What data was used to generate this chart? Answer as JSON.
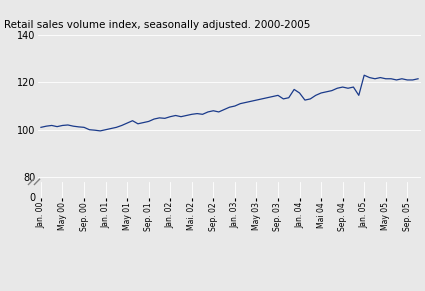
{
  "title": "Retail sales volume index, seasonally adjusted. 2000-2005",
  "line_color": "#1a3a8a",
  "background_color": "#e8e8e8",
  "plot_bg_color": "#e8e8e8",
  "ylim_main": [
    78,
    140
  ],
  "ylim_zero": [
    0,
    5
  ],
  "yticks": [
    80,
    100,
    120,
    140
  ],
  "ytick_labels": [
    "80",
    "100",
    "120",
    "140"
  ],
  "xtick_labels": [
    "Jan. 00",
    "May 00",
    "Sep. 00",
    "Jan. 01",
    "May 01",
    "Sep. 01",
    "Jan. 02",
    "Mai. 02",
    "Sep. 02",
    "Jan. 03",
    "May 03",
    "Sep. 03",
    "Jan. 04",
    "Mai 04",
    "Sep. 04",
    "Jan. 05",
    "May 05",
    "Sep. 05"
  ],
  "values": [
    101.0,
    101.5,
    101.8,
    101.3,
    101.8,
    102.0,
    101.5,
    101.2,
    101.0,
    100.0,
    99.8,
    99.5,
    100.0,
    100.5,
    101.0,
    101.8,
    102.8,
    103.8,
    102.5,
    103.0,
    103.5,
    104.5,
    105.0,
    104.8,
    105.5,
    106.0,
    105.5,
    106.0,
    106.5,
    106.8,
    106.5,
    107.5,
    108.0,
    107.5,
    108.5,
    109.5,
    110.0,
    111.0,
    111.5,
    112.0,
    112.5,
    113.0,
    113.5,
    114.0,
    114.5,
    113.0,
    113.5,
    117.0,
    115.5,
    112.5,
    113.0,
    114.5,
    115.5,
    116.0,
    116.5,
    117.5,
    118.0,
    117.5,
    118.0,
    114.5,
    123.0,
    122.0,
    121.5,
    122.0,
    121.5,
    121.5,
    121.0,
    121.5,
    121.0,
    121.0,
    121.5
  ]
}
